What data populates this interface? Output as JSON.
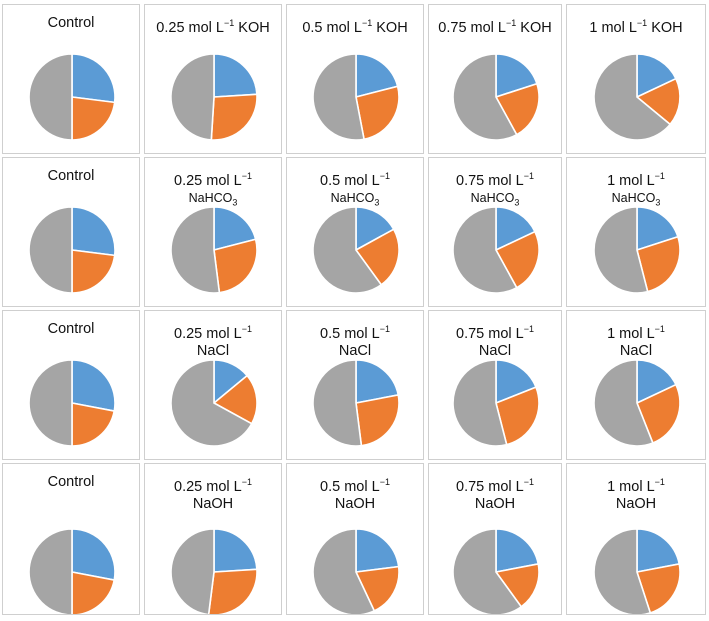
{
  "colors": {
    "series_a": "#5b9bd5",
    "series_b": "#ed7d31",
    "series_c": "#a5a5a5"
  },
  "chart_data": [
    {
      "type": "pie",
      "title": "Control",
      "row": 0,
      "col": 0,
      "values": [
        27,
        23,
        50
      ]
    },
    {
      "type": "pie",
      "title": "0.25 mol L⁻¹ KOH",
      "row": 0,
      "col": 1,
      "values": [
        24,
        27,
        49
      ]
    },
    {
      "type": "pie",
      "title": "0.5 mol L⁻¹ KOH",
      "row": 0,
      "col": 2,
      "values": [
        21,
        26,
        53
      ]
    },
    {
      "type": "pie",
      "title": "0.75 mol L⁻¹ KOH",
      "row": 0,
      "col": 3,
      "values": [
        20,
        22,
        58
      ]
    },
    {
      "type": "pie",
      "title": "1 mol L⁻¹ KOH",
      "row": 0,
      "col": 4,
      "values": [
        18,
        18,
        64
      ]
    },
    {
      "type": "pie",
      "title": "Control",
      "row": 1,
      "col": 0,
      "values": [
        27,
        23,
        50
      ]
    },
    {
      "type": "pie",
      "title": "0.25 mol L⁻¹ NaHCO₃",
      "title_line1": "0.25 mol L⁻¹",
      "title_line2": "NaHCO₃",
      "row": 1,
      "col": 1,
      "values": [
        21,
        27,
        52
      ]
    },
    {
      "type": "pie",
      "title": "0.5 mol L⁻¹ NaHCO₃",
      "title_line1": "0.5 mol L⁻¹",
      "title_line2": "NaHCO₃",
      "row": 1,
      "col": 2,
      "values": [
        17,
        23,
        60
      ]
    },
    {
      "type": "pie",
      "title": "0.75 mol L⁻¹ NaHCO₃",
      "title_line1": "0.75 mol L⁻¹",
      "title_line2": "NaHCO₃",
      "row": 1,
      "col": 3,
      "values": [
        18,
        24,
        58
      ]
    },
    {
      "type": "pie",
      "title": "1 mol L⁻¹ NaHCO₃",
      "title_line1": "1 mol L⁻¹",
      "title_line2": "NaHCO₃",
      "row": 1,
      "col": 4,
      "values": [
        20,
        26,
        54
      ]
    },
    {
      "type": "pie",
      "title": "Control",
      "row": 2,
      "col": 0,
      "values": [
        28,
        22,
        50
      ]
    },
    {
      "type": "pie",
      "title": "0.25 mol L⁻¹ NaCl",
      "title_line1": "0.25 mol L⁻¹",
      "title_line2": "NaCl",
      "row": 2,
      "col": 1,
      "values": [
        14,
        19,
        67
      ]
    },
    {
      "type": "pie",
      "title": "0.5 mol L⁻¹ NaCl",
      "title_line1": "0.5 mol L⁻¹",
      "title_line2": "NaCl",
      "row": 2,
      "col": 2,
      "values": [
        22,
        26,
        52
      ]
    },
    {
      "type": "pie",
      "title": "0.75 mol L⁻¹ NaCl",
      "title_line1": "0.75 mol L⁻¹",
      "title_line2": "NaCl",
      "row": 2,
      "col": 3,
      "values": [
        19,
        27,
        54
      ]
    },
    {
      "type": "pie",
      "title": "1 mol L⁻¹ NaCl",
      "title_line1": "1 mol L⁻¹",
      "title_line2": "NaCl",
      "row": 2,
      "col": 4,
      "values": [
        18,
        26,
        56
      ]
    },
    {
      "type": "pie",
      "title": "Control",
      "row": 3,
      "col": 0,
      "values": [
        28,
        22,
        50
      ]
    },
    {
      "type": "pie",
      "title": "0.25 mol L⁻¹ NaOH",
      "title_line1": "0.25 mol L⁻¹",
      "title_line2": "NaOH",
      "row": 3,
      "col": 1,
      "values": [
        24,
        28,
        48
      ]
    },
    {
      "type": "pie",
      "title": "0.5 mol L⁻¹ NaOH",
      "title_line1": "0.5 mol L⁻¹",
      "title_line2": "NaOH",
      "row": 3,
      "col": 2,
      "values": [
        23,
        20,
        57
      ]
    },
    {
      "type": "pie",
      "title": "0.75 mol L⁻¹ NaOH",
      "title_line1": "0.75 mol L⁻¹",
      "title_line2": "NaOH",
      "row": 3,
      "col": 3,
      "values": [
        22,
        18,
        60
      ]
    },
    {
      "type": "pie",
      "title": "1 mol L⁻¹ NaOH",
      "title_line1": "1 mol L⁻¹",
      "title_line2": "NaOH",
      "row": 3,
      "col": 4,
      "values": [
        22,
        23,
        55
      ]
    }
  ]
}
